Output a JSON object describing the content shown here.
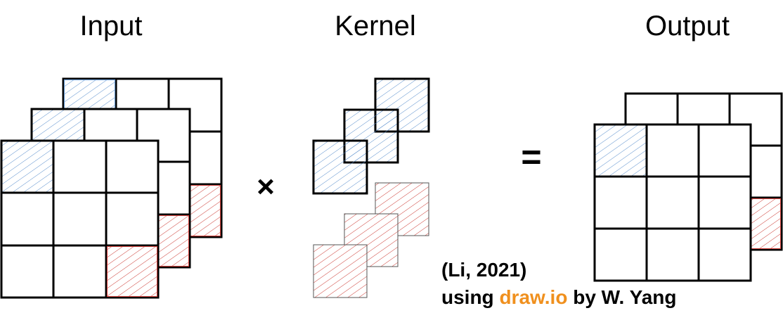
{
  "labels": {
    "input": "Input",
    "kernel": "Kernel",
    "output": "Output"
  },
  "operators": {
    "multiply": "×",
    "equals": "="
  },
  "credit": {
    "citation": "(Li, 2021)",
    "prefix": "using ",
    "tool": "draw.io",
    "suffix": " by W. Yang"
  },
  "colors": {
    "blue_hatch": "#5a8fcd",
    "red_hatch": "#cc3a33",
    "accent_orange": "#F0901E"
  }
}
